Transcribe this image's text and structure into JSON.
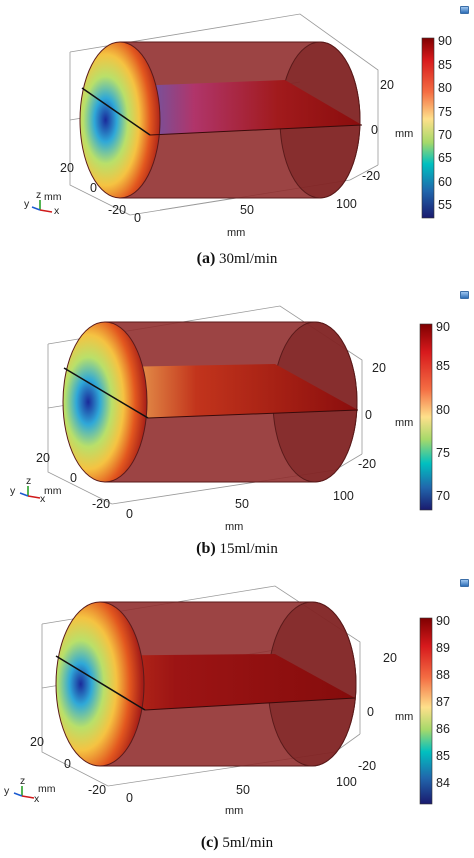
{
  "panels": [
    {
      "label": "(a)",
      "caption": "30ml/min",
      "colorbar": {
        "ticks": [
          "90",
          "85",
          "80",
          "75",
          "70",
          "65",
          "60",
          "55"
        ],
        "unit": "mm"
      },
      "yaxis_ticks": [
        "20",
        "0",
        "-20"
      ],
      "xaxis_ticks": [
        "0",
        "50",
        "100"
      ],
      "zaxis_ticks": [
        "20",
        "0",
        "-20"
      ],
      "xlabel": "mm",
      "triad": {
        "y": "y",
        "z": "z",
        "x": "x",
        "unit": "mm"
      }
    },
    {
      "label": "(b)",
      "caption": "15ml/min",
      "colorbar": {
        "ticks": [
          "90",
          "85",
          "80",
          "75",
          "70"
        ],
        "unit": "mm"
      },
      "yaxis_ticks": [
        "20",
        "0",
        "-20"
      ],
      "xaxis_ticks": [
        "0",
        "50",
        "100"
      ],
      "zaxis_ticks": [
        "20",
        "0",
        "-20"
      ],
      "xlabel": "mm",
      "triad": {
        "y": "y",
        "z": "z",
        "x": "x",
        "unit": "mm"
      }
    },
    {
      "label": "(c)",
      "caption": "5ml/min",
      "colorbar": {
        "ticks": [
          "90",
          "89",
          "88",
          "87",
          "86",
          "85",
          "84"
        ],
        "unit": "mm"
      },
      "yaxis_ticks": [
        "20",
        "0",
        "-20"
      ],
      "xaxis_ticks": [
        "0",
        "50",
        "100"
      ],
      "zaxis_ticks": [
        "20",
        "0",
        "-20"
      ],
      "xlabel": "mm",
      "triad": {
        "y": "y",
        "z": "z",
        "x": "x",
        "unit": "mm"
      }
    }
  ],
  "colors": {
    "cylinder_body": "#8e2a2a",
    "cylinder_edge": "#5a1a1a",
    "hot": "#7e0f10",
    "cold": "#1a237e"
  }
}
